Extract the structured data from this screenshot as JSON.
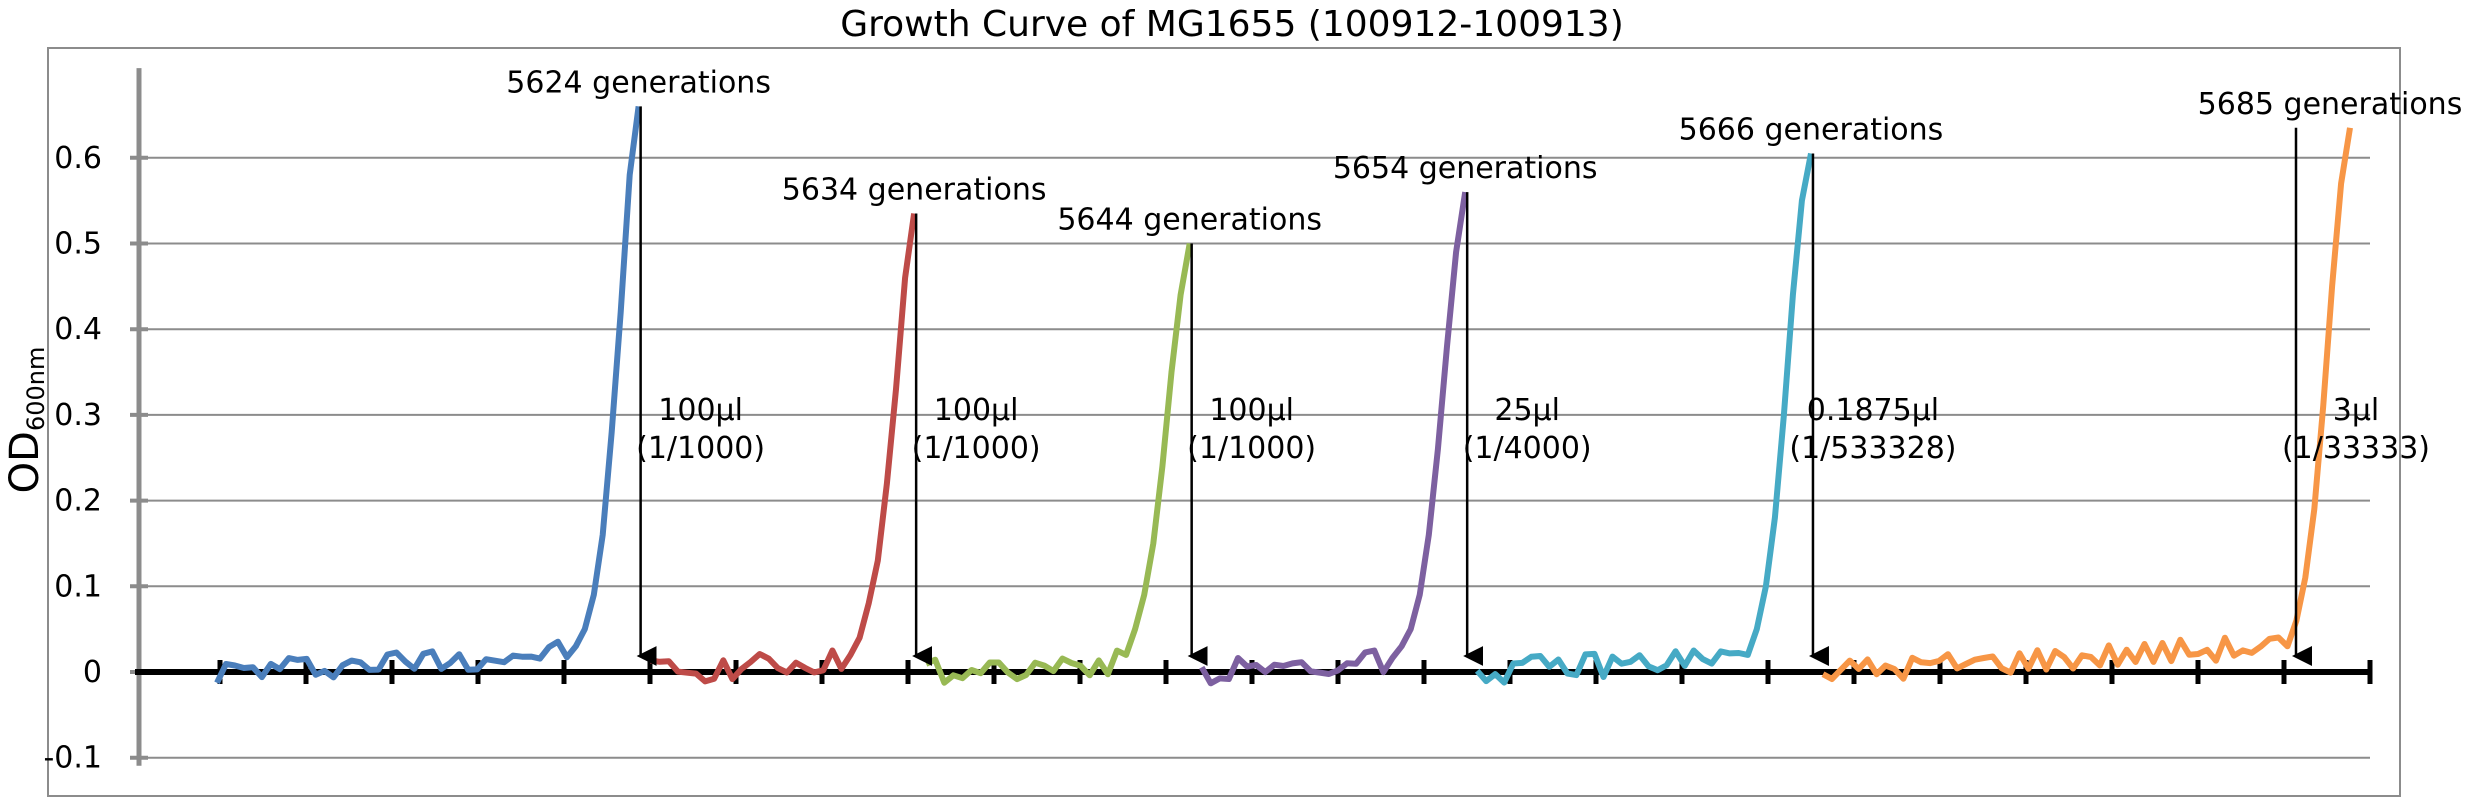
{
  "chart_data": {
    "type": "line",
    "title": "Growth Curve of MG1655 (100912-100913)",
    "ylabel": "OD",
    "ylabel_subscript": "600nm",
    "xlabel": "",
    "ylim": [
      -0.1,
      0.7
    ],
    "yticks": [
      -0.1,
      0,
      0.1,
      0.2,
      0.3,
      0.4,
      0.5,
      0.6
    ],
    "ytick_labels": [
      "-0.1",
      "0",
      "0.1",
      "0.2",
      "0.3",
      "0.4",
      "0.5",
      "0.6"
    ],
    "grid": true,
    "legend": "none",
    "series": [
      {
        "color": "#4a7ebb",
        "length": 48,
        "peak": 0.66,
        "late": [
          0.03,
          0.05,
          0.09,
          0.16,
          0.28,
          0.42,
          0.58,
          0.66
        ]
      },
      {
        "color": "#be4b48",
        "length": 30,
        "peak": 0.535,
        "late": [
          0.02,
          0.04,
          0.08,
          0.13,
          0.22,
          0.33,
          0.46,
          0.535
        ]
      },
      {
        "color": "#98b954",
        "length": 30,
        "peak": 0.5,
        "late": [
          0.02,
          0.05,
          0.09,
          0.15,
          0.24,
          0.35,
          0.44,
          0.5
        ]
      },
      {
        "color": "#7d60a0",
        "length": 30,
        "peak": 0.56,
        "late": [
          0.03,
          0.05,
          0.09,
          0.16,
          0.26,
          0.38,
          0.49,
          0.56
        ]
      },
      {
        "color": "#46aac5",
        "length": 38,
        "peak": 0.605,
        "late": [
          0.02,
          0.05,
          0.1,
          0.18,
          0.3,
          0.44,
          0.55,
          0.605
        ]
      },
      {
        "color": "#f79646",
        "length": 60,
        "peak": 0.635,
        "late": [
          0.03,
          0.06,
          0.11,
          0.19,
          0.31,
          0.45,
          0.57,
          0.635
        ]
      }
    ],
    "annotations": [
      {
        "label": "5624 generations",
        "inoculum": "100μl",
        "dilution": "(1/1000)"
      },
      {
        "label": "5634 generations",
        "inoculum": "100μl",
        "dilution": "(1/1000)"
      },
      {
        "label": "5644 generations",
        "inoculum": "100μl",
        "dilution": "(1/1000)"
      },
      {
        "label": "5654 generations",
        "inoculum": "25μl",
        "dilution": "(1/4000)"
      },
      {
        "label": "5666 generations",
        "inoculum": "0.1875μl",
        "dilution": "(1/533328)"
      },
      {
        "label": "5685 generations",
        "inoculum": "3μl",
        "dilution": "(1/33333)"
      }
    ]
  }
}
